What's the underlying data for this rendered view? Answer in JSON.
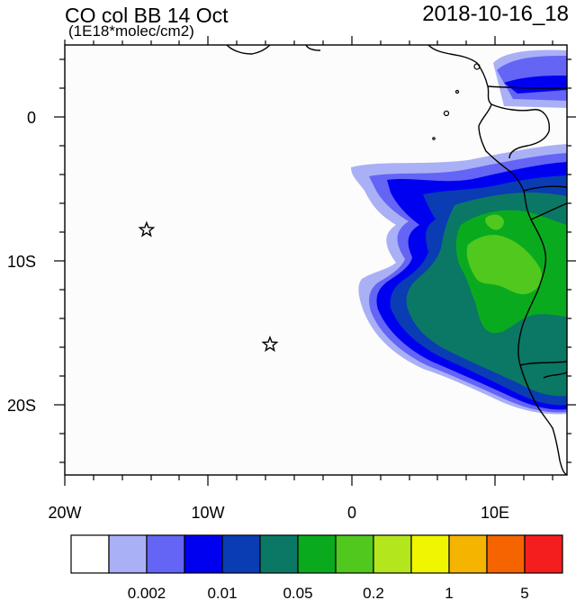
{
  "header": {
    "title": "CO col BB 14 Oct",
    "units": "(1E18*molec/cm2)",
    "timestamp": "2018-10-16_18"
  },
  "axes": {
    "x_ticks": [
      "20W",
      "10W",
      "0",
      "10E"
    ],
    "y_ticks": [
      "0",
      "10S",
      "20S"
    ]
  },
  "legend": {
    "colors": [
      "#ffffff",
      "#aab0f5",
      "#6464f5",
      "#0000f0",
      "#0a3cb4",
      "#0a7864",
      "#0aaa1e",
      "#50c81e",
      "#b4e61e",
      "#f0f500",
      "#f5b400",
      "#f56400",
      "#f51e1e"
    ],
    "labels": [
      "0.002",
      "0.01",
      "0.05",
      "0.2",
      "1",
      "5"
    ]
  },
  "markers": [
    {
      "name": "station-star-1",
      "lon": -14.3,
      "lat": -7.9
    },
    {
      "name": "station-star-2",
      "lon": -5.7,
      "lat": -15.9
    }
  ]
}
